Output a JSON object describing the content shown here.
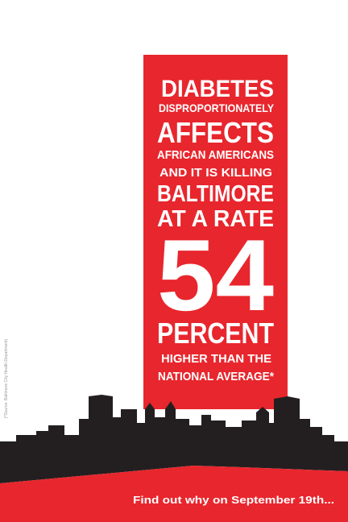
{
  "poster": {
    "lines": [
      "DIABETES",
      "DISPROPORTIONATELY",
      "AFFECTS",
      "AFRICAN AMERICANS",
      "AND IT IS KILLING",
      "BALTIMORE",
      "AT A RATE"
    ],
    "figure": 54,
    "after": [
      "PERCENT",
      "HIGHER THAN THE",
      "NATIONAL AVERAGE*"
    ],
    "footer": "Find out why on September 19th...",
    "source": "(*Source: Baltimore City Health Department)"
  }
}
